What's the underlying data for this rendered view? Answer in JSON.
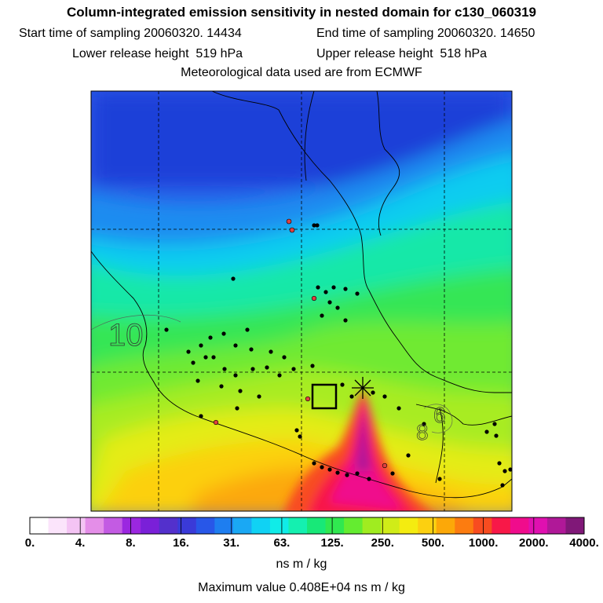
{
  "header": {
    "title": "Column-integrated emission sensitivity in nested domain for c130_060319",
    "start_label": "Start time of sampling 20060320. 14434",
    "end_label": "End time of sampling 20060320. 14650",
    "lower_label": "Lower release height  519 hPa",
    "upper_label": "Upper release height  518 hPa",
    "met_label": "Meteorological data used are from ECMWF"
  },
  "map": {
    "contour_labels": [
      "10",
      "8",
      "6"
    ]
  },
  "colorbar": {
    "ticks": [
      "0.",
      "4.",
      "8.",
      "16.",
      "31.",
      "63.",
      "125.",
      "250.",
      "500.",
      "1000.",
      "2000.",
      "4000."
    ],
    "units": "ns m / kg",
    "colors": [
      "#ffffff",
      "#fbe4fb",
      "#f4c4f4",
      "#e48ee8",
      "#c35be3",
      "#9b27e0",
      "#7a20d8",
      "#5330cc",
      "#3a3ad8",
      "#2857e8",
      "#1e7ef0",
      "#1aa8f4",
      "#10d2f4",
      "#10ece8",
      "#14f0b0",
      "#18e878",
      "#30e850",
      "#64ec30",
      "#a0ec20",
      "#d0ec18",
      "#f4ec10",
      "#fcd010",
      "#fca808",
      "#fc7c10",
      "#f84c20",
      "#f81848",
      "#f00c8c",
      "#e010b0",
      "#b01898",
      "#801878"
    ]
  },
  "footer": {
    "max_label": "Maximum value  0.408E+04 ns m / kg"
  }
}
